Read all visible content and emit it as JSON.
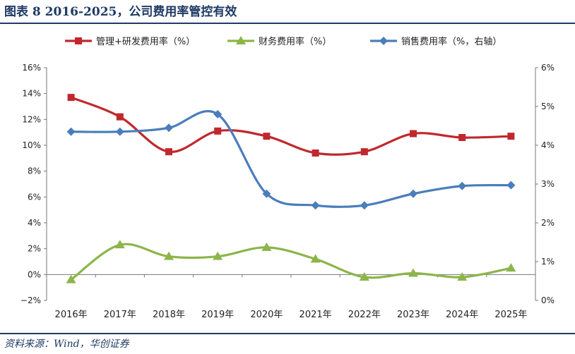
{
  "figure": {
    "title": "图表 8   2016-2025，公司费用率管控有效",
    "source": "资料来源：Wind，华创证券"
  },
  "chart_data": {
    "type": "line",
    "title": "",
    "categories": [
      "2016年",
      "2017年",
      "2018年",
      "2019年",
      "2020年",
      "2021年",
      "2022年",
      "2023年",
      "2024年",
      "2025年"
    ],
    "series": [
      {
        "name": "管理+研发费用率（%）",
        "axis": "left",
        "color": "#c0282d",
        "marker": "square",
        "values": [
          13.7,
          12.2,
          9.5,
          11.1,
          10.7,
          9.4,
          9.5,
          10.9,
          10.6,
          10.7
        ]
      },
      {
        "name": "财务费用率（%）",
        "axis": "left",
        "color": "#8cb54a",
        "marker": "triangle",
        "values": [
          -0.4,
          2.3,
          1.4,
          1.4,
          2.1,
          1.2,
          -0.2,
          0.1,
          -0.2,
          0.5
        ]
      },
      {
        "name": "销售费用率（%，右轴）",
        "axis": "right",
        "color": "#4a7ebb",
        "marker": "diamond",
        "values": [
          4.35,
          4.35,
          4.45,
          4.8,
          2.75,
          2.45,
          2.45,
          2.75,
          2.95,
          2.97
        ]
      }
    ],
    "y_left": {
      "min": -2,
      "max": 16,
      "step": 2,
      "tick_labels": [
        "−2%",
        "0%",
        "2%",
        "4%",
        "6%",
        "8%",
        "10%",
        "12%",
        "14%",
        "16%"
      ]
    },
    "y_right": {
      "min": 0,
      "max": 6,
      "step": 1,
      "tick_labels": [
        "0%",
        "1%",
        "2%",
        "3%",
        "4%",
        "5%",
        "6%"
      ]
    },
    "grid": false,
    "legend_position": "top"
  }
}
